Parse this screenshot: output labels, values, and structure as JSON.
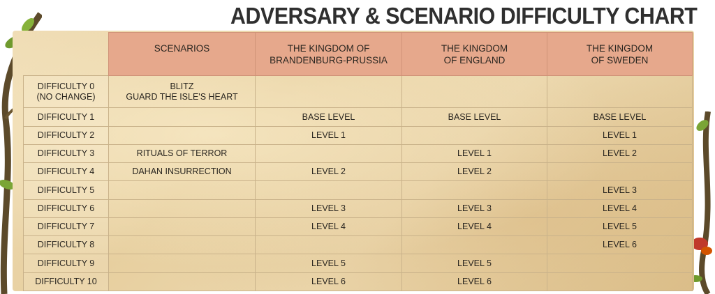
{
  "title": "ADVERSARY & SCENARIO DIFFICULTY CHART",
  "table": {
    "columns": [
      "SCENARIOS",
      [
        "THE KINGDOM OF",
        "BRANDENBURG-PRUSSIA"
      ],
      [
        "THE KINGDOM",
        "OF ENGLAND"
      ],
      [
        "THE KINGDOM",
        "OF SWEDEN"
      ]
    ],
    "rows": [
      {
        "label": [
          "DIFFICULTY 0",
          "(NO CHANGE)"
        ],
        "cells": [
          [
            "BLITZ",
            "GUARD THE ISLE'S HEART"
          ],
          "",
          "",
          ""
        ]
      },
      {
        "label": [
          "DIFFICULTY 1"
        ],
        "cells": [
          "",
          "BASE LEVEL",
          "BASE LEVEL",
          "BASE LEVEL"
        ]
      },
      {
        "label": [
          "DIFFICULTY 2"
        ],
        "cells": [
          "",
          "LEVEL 1",
          "",
          "LEVEL 1"
        ]
      },
      {
        "label": [
          "DIFFICULTY 3"
        ],
        "cells": [
          "RITUALS OF TERROR",
          "",
          "LEVEL 1",
          "LEVEL 2"
        ]
      },
      {
        "label": [
          "DIFFICULTY 4"
        ],
        "cells": [
          "DAHAN INSURRECTION",
          "LEVEL 2",
          "LEVEL 2",
          ""
        ]
      },
      {
        "label": [
          "DIFFICULTY 5"
        ],
        "cells": [
          "",
          "",
          "",
          "LEVEL 3"
        ]
      },
      {
        "label": [
          "DIFFICULTY 6"
        ],
        "cells": [
          "",
          "LEVEL 3",
          "LEVEL 3",
          "LEVEL 4"
        ]
      },
      {
        "label": [
          "DIFFICULTY 7"
        ],
        "cells": [
          "",
          "LEVEL 4",
          "LEVEL 4",
          "LEVEL 5"
        ]
      },
      {
        "label": [
          "DIFFICULTY 8"
        ],
        "cells": [
          "",
          "",
          "",
          "LEVEL 6"
        ]
      },
      {
        "label": [
          "DIFFICULTY 9"
        ],
        "cells": [
          "",
          "LEVEL 5",
          "LEVEL 5",
          ""
        ]
      },
      {
        "label": [
          "DIFFICULTY 10"
        ],
        "cells": [
          "",
          "LEVEL 6",
          "LEVEL 6",
          ""
        ]
      }
    ]
  }
}
